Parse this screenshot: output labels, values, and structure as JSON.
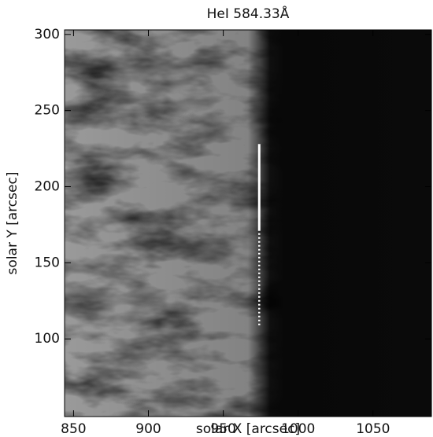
{
  "chart_data": {
    "type": "image",
    "title": "HeI 584.33Å",
    "x_label": "solar X [arcsec]",
    "y_label": "solar Y [arcsec]",
    "xlim": [
      844,
      1089
    ],
    "ylim": [
      49,
      303
    ],
    "xticks": [
      850,
      900,
      950,
      1000,
      1050
    ],
    "yticks": [
      100,
      150,
      200,
      250,
      300
    ],
    "slit": {
      "x": 974,
      "solid": [
        171,
        228
      ],
      "dotted": [
        109,
        171
      ],
      "color": "#ffffff"
    }
  }
}
